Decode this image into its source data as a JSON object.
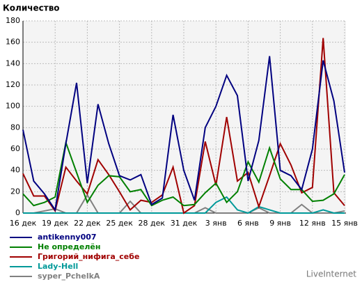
{
  "chart_data": {
    "type": "line",
    "title": "Количество",
    "categories": [
      "16 дек",
      null,
      null,
      "19 дек",
      null,
      null,
      "22 дек",
      null,
      null,
      "25 дек",
      null,
      null,
      "28 дек",
      null,
      null,
      "31 дек",
      null,
      null,
      "3 янв",
      null,
      null,
      "6 янв",
      null,
      null,
      "9 янв",
      null,
      null,
      "12 янв",
      null,
      null,
      "15 янв"
    ],
    "series": [
      {
        "name": "antikenny007",
        "color": "#000080",
        "values": [
          78,
          30,
          18,
          3,
          65,
          122,
          28,
          102,
          65,
          35,
          31,
          36,
          8,
          14,
          92,
          40,
          12,
          80,
          100,
          129,
          110,
          30,
          68,
          147,
          40,
          35,
          22,
          60,
          143,
          105,
          38
        ]
      },
      {
        "name": "Не определён",
        "color": "#008000",
        "values": [
          18,
          7,
          10,
          15,
          66,
          38,
          10,
          26,
          35,
          34,
          20,
          22,
          7,
          12,
          15,
          7,
          8,
          19,
          28,
          10,
          20,
          48,
          29,
          61,
          32,
          22,
          22,
          11,
          12,
          18,
          36
        ]
      },
      {
        "name": "Григорий_нифига_себе",
        "color": "#a00000",
        "values": [
          37,
          16,
          16,
          2,
          43,
          30,
          18,
          50,
          36,
          20,
          3,
          12,
          10,
          17,
          43,
          0,
          7,
          67,
          26,
          90,
          30,
          38,
          6,
          35,
          65,
          45,
          19,
          24,
          164,
          19,
          7
        ]
      },
      {
        "name": "Lady-Hell",
        "color": "#009999",
        "values": [
          0,
          0,
          0,
          0,
          0,
          0,
          0,
          0,
          0,
          0,
          0,
          0,
          0,
          0,
          0,
          0,
          0,
          0,
          10,
          15,
          3,
          0,
          6,
          3,
          0,
          0,
          0,
          0,
          3,
          0,
          0
        ]
      },
      {
        "name": "syper_PchelkA",
        "color": "#808080",
        "values": [
          0,
          0,
          2,
          4,
          0,
          0,
          17,
          0,
          0,
          0,
          11,
          0,
          0,
          0,
          0,
          0,
          0,
          5,
          0,
          0,
          0,
          0,
          5,
          0,
          0,
          0,
          8,
          0,
          0,
          0,
          2
        ]
      }
    ],
    "ylim": [
      0,
      180
    ],
    "yticks": [
      0,
      20,
      40,
      60,
      80,
      100,
      120,
      140,
      160,
      180
    ],
    "grid": true,
    "footer": "LiveInternet"
  }
}
